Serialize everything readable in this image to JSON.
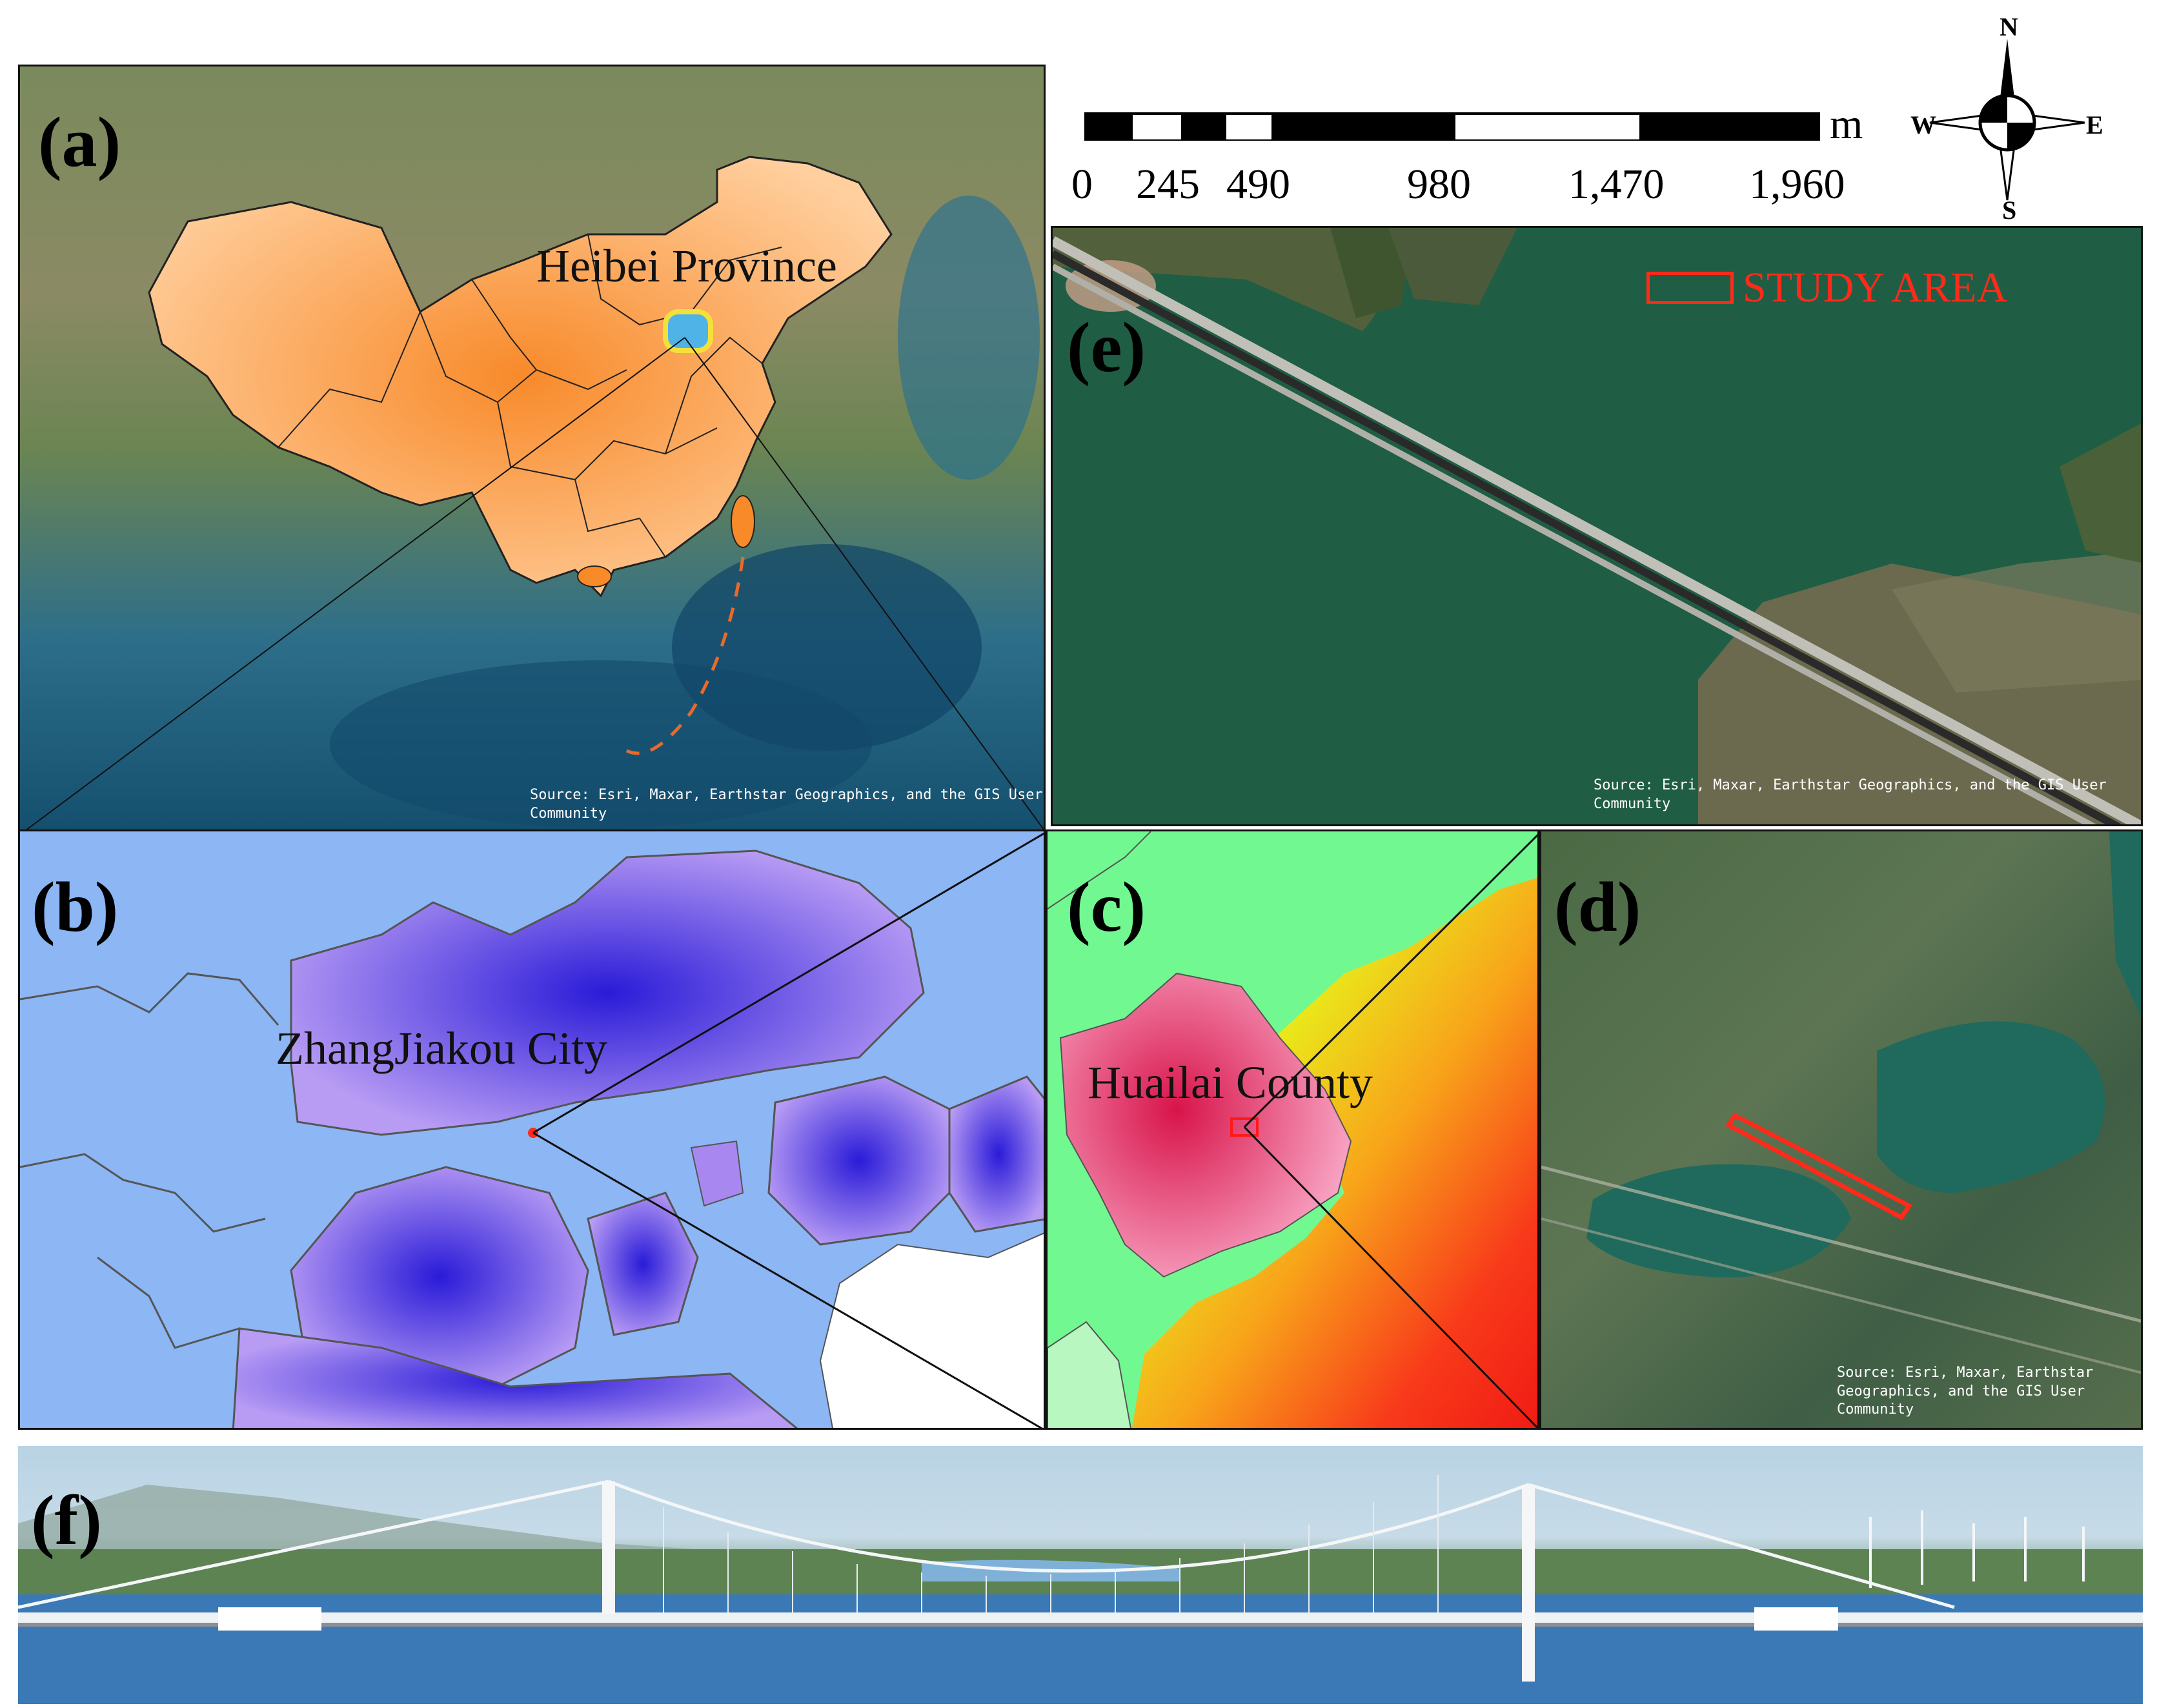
{
  "panels": {
    "a": {
      "label": "(a)",
      "place": "Heibei Province",
      "attribution_line1": "Source: Esri, Maxar, Earthstar Geographics, and the GIS User",
      "attribution_line2": "Community"
    },
    "b": {
      "label": "(b)",
      "place": "ZhangJiakou City"
    },
    "c": {
      "label": "(c)",
      "place": "Huailai County"
    },
    "d": {
      "label": "(d)",
      "attribution_line1": "Source: Esri, Maxar, Earthstar",
      "attribution_line2": "Geographics, and the GIS User",
      "attribution_line3": "Community"
    },
    "e": {
      "label": "(e)",
      "legend_label": "STUDY AREA",
      "attribution_line1": "Source: Esri, Maxar, Earthstar Geographics, and the GIS User",
      "attribution_line2": "Community"
    },
    "f": {
      "label": "(f)"
    }
  },
  "scale_bar": {
    "unit": "m",
    "ticks": [
      "0",
      "245",
      "490",
      "980",
      "1,470",
      "1,960"
    ]
  },
  "compass": {
    "north": "N",
    "south": "S",
    "east": "E",
    "west": "W"
  },
  "colors": {
    "china_fill": "#f79a4e",
    "city_fill": "#8a5cf0",
    "county_fill": "#e8457a",
    "study_area": "#ff2a1a",
    "water": "#1f5e44"
  }
}
